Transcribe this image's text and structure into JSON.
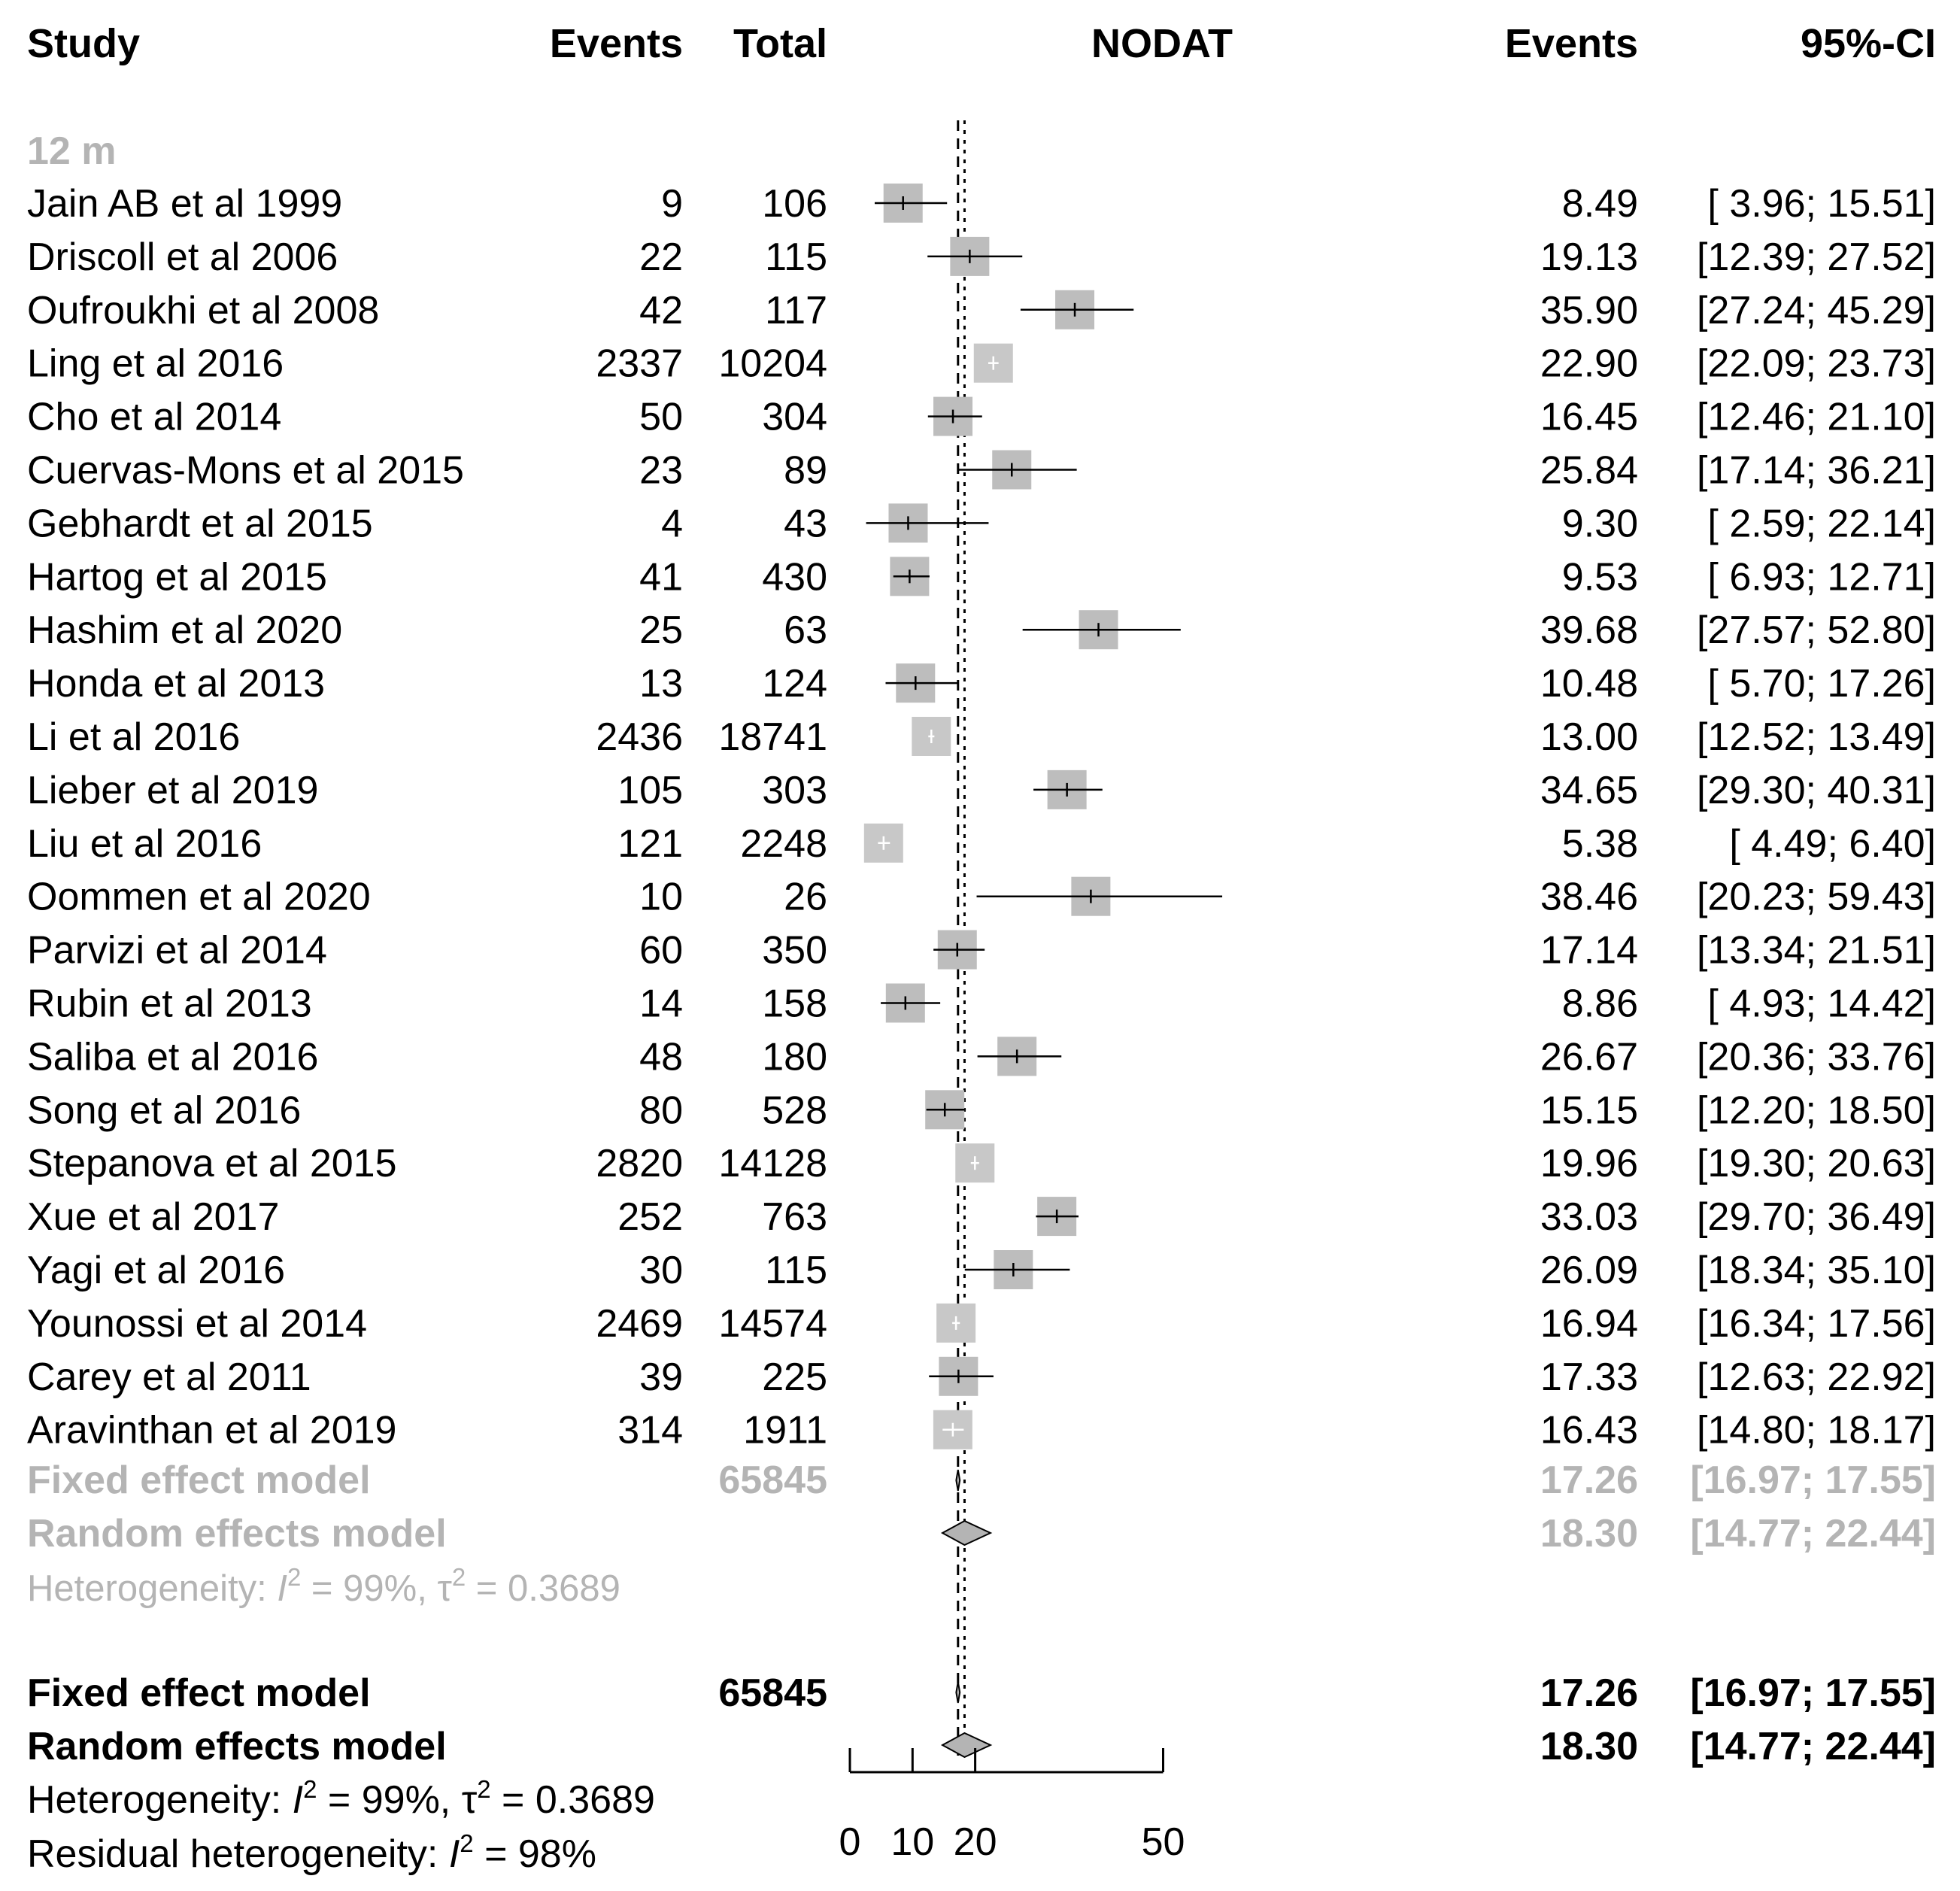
{
  "chart_data": {
    "type": "forest",
    "headers": {
      "study": "Study",
      "events": "Events",
      "total": "Total",
      "plot_title": "NODAT",
      "estimate": "Events",
      "ci": "95%-CI"
    },
    "subgroup": {
      "label": "12 m",
      "studies": [
        {
          "study": "Jain AB et al 1999",
          "events": "9",
          "total": "106",
          "est": 8.49,
          "lo": 3.96,
          "hi": 15.51,
          "est_txt": "8.49",
          "ci_txt": "[ 3.96; 15.51]",
          "weight_box": "dark"
        },
        {
          "study": "Driscoll et al 2006",
          "events": "22",
          "total": "115",
          "est": 19.13,
          "lo": 12.39,
          "hi": 27.52,
          "est_txt": "19.13",
          "ci_txt": "[12.39; 27.52]",
          "weight_box": "dark"
        },
        {
          "study": "Oufroukhi et al 2008",
          "events": "42",
          "total": "117",
          "est": 35.9,
          "lo": 27.24,
          "hi": 45.29,
          "est_txt": "35.90",
          "ci_txt": "[27.24; 45.29]",
          "weight_box": "dark"
        },
        {
          "study": "Ling et al 2016",
          "events": "2337",
          "total": "10204",
          "est": 22.9,
          "lo": 22.09,
          "hi": 23.73,
          "est_txt": "22.90",
          "ci_txt": "[22.09; 23.73]",
          "weight_box": "light"
        },
        {
          "study": "Cho et al 2014",
          "events": "50",
          "total": "304",
          "est": 16.45,
          "lo": 12.46,
          "hi": 21.1,
          "est_txt": "16.45",
          "ci_txt": "[12.46; 21.10]",
          "weight_box": "dark"
        },
        {
          "study": "Cuervas-Mons et al 2015",
          "events": "23",
          "total": "89",
          "est": 25.84,
          "lo": 17.14,
          "hi": 36.21,
          "est_txt": "25.84",
          "ci_txt": "[17.14; 36.21]",
          "weight_box": "dark"
        },
        {
          "study": "Gebhardt et al 2015",
          "events": "4",
          "total": "43",
          "est": 9.3,
          "lo": 2.59,
          "hi": 22.14,
          "est_txt": "9.30",
          "ci_txt": "[ 2.59; 22.14]",
          "weight_box": "dark"
        },
        {
          "study": "Hartog et al 2015",
          "events": "41",
          "total": "430",
          "est": 9.53,
          "lo": 6.93,
          "hi": 12.71,
          "est_txt": "9.53",
          "ci_txt": "[ 6.93; 12.71]",
          "weight_box": "dark"
        },
        {
          "study": "Hashim et al 2020",
          "events": "25",
          "total": "63",
          "est": 39.68,
          "lo": 27.57,
          "hi": 52.8,
          "est_txt": "39.68",
          "ci_txt": "[27.57; 52.80]",
          "weight_box": "dark"
        },
        {
          "study": "Honda et al 2013",
          "events": "13",
          "total": "124",
          "est": 10.48,
          "lo": 5.7,
          "hi": 17.26,
          "est_txt": "10.48",
          "ci_txt": "[ 5.70; 17.26]",
          "weight_box": "dark"
        },
        {
          "study": "Li et al 2016",
          "events": "2436",
          "total": "18741",
          "est": 13.0,
          "lo": 12.52,
          "hi": 13.49,
          "est_txt": "13.00",
          "ci_txt": "[12.52; 13.49]",
          "weight_box": "light"
        },
        {
          "study": "Lieber et al 2019",
          "events": "105",
          "total": "303",
          "est": 34.65,
          "lo": 29.3,
          "hi": 40.31,
          "est_txt": "34.65",
          "ci_txt": "[29.30; 40.31]",
          "weight_box": "dark"
        },
        {
          "study": "Liu et al 2016",
          "events": "121",
          "total": "2248",
          "est": 5.38,
          "lo": 4.49,
          "hi": 6.4,
          "est_txt": "5.38",
          "ci_txt": "[ 4.49;  6.40]",
          "weight_box": "light"
        },
        {
          "study": "Oommen et al 2020",
          "events": "10",
          "total": "26",
          "est": 38.46,
          "lo": 20.23,
          "hi": 59.43,
          "est_txt": "38.46",
          "ci_txt": "[20.23; 59.43]",
          "weight_box": "dark"
        },
        {
          "study": "Parvizi et al 2014",
          "events": "60",
          "total": "350",
          "est": 17.14,
          "lo": 13.34,
          "hi": 21.51,
          "est_txt": "17.14",
          "ci_txt": "[13.34; 21.51]",
          "weight_box": "dark"
        },
        {
          "study": "Rubin et al 2013",
          "events": "14",
          "total": "158",
          "est": 8.86,
          "lo": 4.93,
          "hi": 14.42,
          "est_txt": "8.86",
          "ci_txt": "[ 4.93; 14.42]",
          "weight_box": "dark"
        },
        {
          "study": "Saliba et al 2016",
          "events": "48",
          "total": "180",
          "est": 26.67,
          "lo": 20.36,
          "hi": 33.76,
          "est_txt": "26.67",
          "ci_txt": "[20.36; 33.76]",
          "weight_box": "dark"
        },
        {
          "study": "Song et al 2016",
          "events": "80",
          "total": "528",
          "est": 15.15,
          "lo": 12.2,
          "hi": 18.5,
          "est_txt": "15.15",
          "ci_txt": "[12.20; 18.50]",
          "weight_box": "dark"
        },
        {
          "study": "Stepanova et al 2015",
          "events": "2820",
          "total": "14128",
          "est": 19.96,
          "lo": 19.3,
          "hi": 20.63,
          "est_txt": "19.96",
          "ci_txt": "[19.30; 20.63]",
          "weight_box": "light"
        },
        {
          "study": "Xue et al 2017",
          "events": "252",
          "total": "763",
          "est": 33.03,
          "lo": 29.7,
          "hi": 36.49,
          "est_txt": "33.03",
          "ci_txt": "[29.70; 36.49]",
          "weight_box": "dark"
        },
        {
          "study": "Yagi et al 2016",
          "events": "30",
          "total": "115",
          "est": 26.09,
          "lo": 18.34,
          "hi": 35.1,
          "est_txt": "26.09",
          "ci_txt": "[18.34; 35.10]",
          "weight_box": "dark"
        },
        {
          "study": "Younossi et al 2014",
          "events": "2469",
          "total": "14574",
          "est": 16.94,
          "lo": 16.34,
          "hi": 17.56,
          "est_txt": "16.94",
          "ci_txt": "[16.34; 17.56]",
          "weight_box": "light"
        },
        {
          "study": "Carey et al 2011",
          "events": "39",
          "total": "225",
          "est": 17.33,
          "lo": 12.63,
          "hi": 22.92,
          "est_txt": "17.33",
          "ci_txt": "[12.63; 22.92]",
          "weight_box": "dark"
        },
        {
          "study": "Aravinthan et al 2019",
          "events": "314",
          "total": "1911",
          "est": 16.43,
          "lo": 14.8,
          "hi": 18.17,
          "est_txt": "16.43",
          "ci_txt": "[14.80; 18.17]",
          "weight_box": "light"
        }
      ],
      "fixed": {
        "label": "Fixed effect model",
        "total": "65845",
        "est": 17.26,
        "lo": 16.97,
        "hi": 17.55,
        "est_txt": "17.26",
        "ci_txt": "[16.97; 17.55]"
      },
      "random": {
        "label": "Random effects model",
        "est": 18.3,
        "lo": 14.77,
        "hi": 22.44,
        "est_txt": "18.30",
        "ci_txt": "[14.77; 22.44]"
      },
      "heterogeneity": {
        "prefix": "Heterogeneity: ",
        "i_symbol": "I",
        "sup": "2",
        "i2_value": " = 99%, ",
        "tau_symbol": "τ",
        "tau_value": " = 0.3689"
      }
    },
    "overall": {
      "fixed": {
        "label": "Fixed effect model",
        "total": "65845",
        "est": 17.26,
        "lo": 16.97,
        "hi": 17.55,
        "est_txt": "17.26",
        "ci_txt": "[16.97; 17.55]"
      },
      "random": {
        "label": "Random effects model",
        "est": 18.3,
        "lo": 14.77,
        "hi": 22.44,
        "est_txt": "18.30",
        "ci_txt": "[14.77; 22.44]"
      },
      "heterogeneity": {
        "prefix": "Heterogeneity: ",
        "i_symbol": "I",
        "sup": "2",
        "i2_value": " = 99%, ",
        "tau_symbol": "τ",
        "tau_value": " = 0.3689"
      },
      "residual": {
        "prefix": "Residual heterogeneity: ",
        "i_symbol": "I",
        "sup": "2",
        "i2_value": " = 98%"
      }
    },
    "x_axis": {
      "ticks": [
        0,
        10,
        20,
        50
      ],
      "tick_labels": [
        "0",
        "10",
        "20",
        "50"
      ],
      "range": [
        0,
        50
      ]
    },
    "reference_lines": {
      "fixed": 17.26,
      "random": 18.3
    }
  }
}
